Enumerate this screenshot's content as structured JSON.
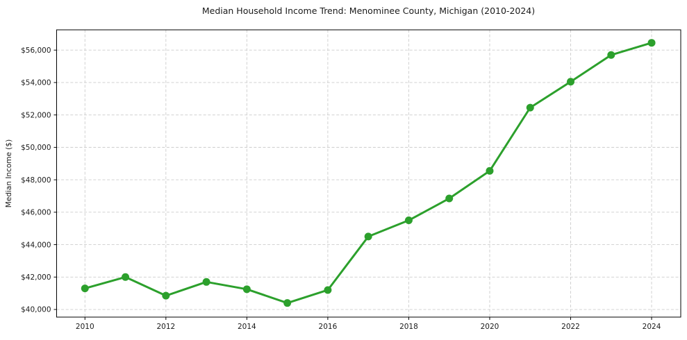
{
  "figure": {
    "background": "#ffffff"
  },
  "chart_data": {
    "type": "line",
    "title": "Median Household Income Trend: Menominee County, Michigan (2010-2024)",
    "xlabel": "",
    "ylabel": "Median Income ($)",
    "x": [
      2010,
      2011,
      2012,
      2013,
      2014,
      2015,
      2016,
      2017,
      2018,
      2019,
      2020,
      2021,
      2022,
      2023,
      2024
    ],
    "values": [
      41300,
      42000,
      40850,
      41700,
      41250,
      40400,
      41200,
      44500,
      45500,
      46850,
      48550,
      52450,
      54050,
      55700,
      56450
    ],
    "xticks": [
      2010,
      2012,
      2014,
      2016,
      2018,
      2020,
      2022,
      2024
    ],
    "xtick_labels": [
      "2010",
      "2012",
      "2014",
      "2016",
      "2018",
      "2020",
      "2022",
      "2024"
    ],
    "yticks": [
      40000,
      42000,
      44000,
      46000,
      48000,
      50000,
      52000,
      54000,
      56000
    ],
    "ytick_labels": [
      "$40,000",
      "$42,000",
      "$44,000",
      "$46,000",
      "$48,000",
      "$50,000",
      "$52,000",
      "$54,000",
      "$56,000"
    ],
    "xlim": [
      2009.3,
      2024.72
    ],
    "ylim": [
      39530,
      57250
    ],
    "grid": true,
    "grid_style": "dashed",
    "legend": "none",
    "marker": "circle",
    "colors": {
      "line": "#2ca02c",
      "marker": "#2ca02c",
      "grid": "#cccccc",
      "axis": "#000000",
      "text": "#1a1a1a"
    }
  }
}
